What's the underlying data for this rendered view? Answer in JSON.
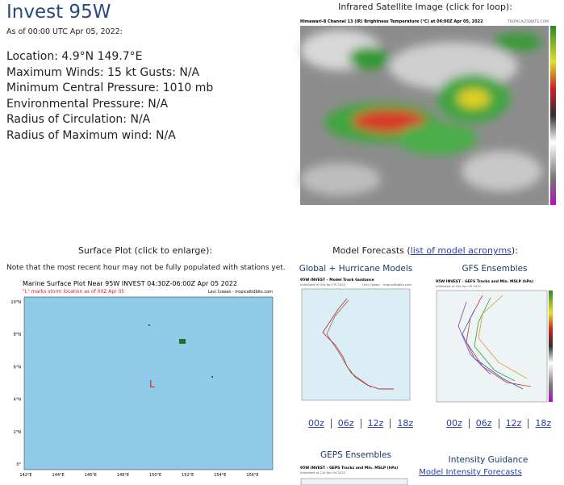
{
  "storm": {
    "title": "Invest 95W",
    "as_of": "As of 00:00 UTC Apr 05, 2022:",
    "details": [
      "Location: 4.9°N 149.7°E",
      "Maximum Winds: 15 kt  Gusts: N/A",
      "Minimum Central Pressure: 1010 mb",
      "Environmental Pressure: N/A",
      "Radius of Circulation: N/A",
      "Radius of Maximum wind: N/A"
    ]
  },
  "satellite": {
    "heading": "Infrared Satellite Image (click for loop):",
    "image_title": "Himawari-8 Channel 13 (IR) Brightness Temperature (°C) at 06:00Z Apr 05, 2022",
    "credit": "TROPICALTIDBITS.COM"
  },
  "surface": {
    "heading": "Surface Plot (click to enlarge):",
    "note": "Note that the most recent hour may not be fully populated with stations yet.",
    "plot_title": "Marine Surface Plot Near 95W INVEST 04:30Z-06:00Z Apr 05 2022",
    "plot_subtitle": "\"L\" marks storm location as of 00Z Apr 05",
    "credit": "Levi Cowan - tropicaltidbits.com",
    "marker": "L",
    "y_labels": [
      "10°N",
      "8°N",
      "6°N",
      "4°N",
      "2°N",
      "0°"
    ],
    "x_labels": [
      "142°E",
      "144°E",
      "146°E",
      "148°E",
      "150°E",
      "152°E",
      "154°E",
      "156°E"
    ]
  },
  "models": {
    "heading_prefix": "Model Forecasts (",
    "heading_link": "list of model acronyms",
    "heading_suffix": "):",
    "global": {
      "heading": "Global + Hurricane Models",
      "image_title": "95W INVEST - Model Track Guidance",
      "image_subtitle": "Initialized at 00z Apr 05 2022",
      "credit": "Levi Cowan - tropicaltidbits.com",
      "links": [
        "00z",
        "06z",
        "12z",
        "18z"
      ]
    },
    "gfs": {
      "heading": "GFS Ensembles",
      "image_title": "95W INVEST - GEFS Tracks and Min. MSLP (hPa)",
      "image_subtitle": "Initialized at 00z Apr 05 2022",
      "links": [
        "00z",
        "06z",
        "12z",
        "18z"
      ]
    },
    "geps": {
      "heading": "GEPS Ensembles",
      "image_title": "95W INVEST - GEPS Tracks and Min. MSLP (hPa)",
      "image_subtitle": "Initialized at 12z Apr 04 2022"
    },
    "intensity": {
      "heading": "Intensity Guidance",
      "link": "Model Intensity Forecasts"
    }
  }
}
